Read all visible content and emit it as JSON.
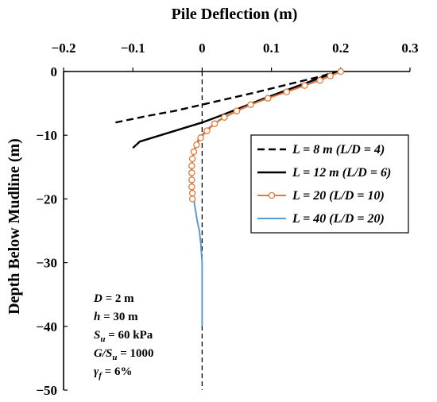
{
  "chart_data": {
    "type": "line",
    "title": "",
    "xlabel": "Pile Deflection (m)",
    "ylabel": "Depth Below Mudline (m)",
    "xlim": [
      -0.2,
      0.3
    ],
    "ylim": [
      -50,
      0
    ],
    "x_ticks": [
      "−0.2",
      "−0.1",
      "0",
      "0.1",
      "0.2",
      "0.3"
    ],
    "y_ticks": [
      "0",
      "−10",
      "−20",
      "−30",
      "−40",
      "−50"
    ],
    "x_axis_position": "top",
    "grid": false,
    "legend_position": "top-right",
    "reference_line": {
      "x": 0,
      "style": "dashed"
    },
    "series": [
      {
        "name": "L = 8 m (L/D = 4)",
        "style": "dashed",
        "color": "#000000",
        "marker": "none",
        "x": [
          -0.125,
          -0.08,
          -0.04,
          0.0,
          0.04,
          0.08,
          0.11,
          0.14,
          0.17,
          0.195
        ],
        "y": [
          -8,
          -7,
          -6.2,
          -5.2,
          -4.2,
          -3.2,
          -2.4,
          -1.6,
          -0.8,
          0
        ]
      },
      {
        "name": "L = 12 m (L/D = 6)",
        "style": "solid",
        "color": "#000000",
        "marker": "none",
        "x": [
          -0.1,
          -0.09,
          -0.06,
          -0.03,
          0.0,
          0.03,
          0.06,
          0.09,
          0.12,
          0.15,
          0.175,
          0.198
        ],
        "y": [
          -12,
          -11,
          -10,
          -9,
          -8,
          -6.8,
          -5.5,
          -4.2,
          -3,
          -1.8,
          -0.8,
          0
        ]
      },
      {
        "name": "L = 20 (L/D = 10)",
        "style": "solid",
        "color": "#e07a3a",
        "marker": "circle",
        "x": [
          0.2,
          0.185,
          0.17,
          0.148,
          0.122,
          0.095,
          0.07,
          0.05,
          0.032,
          0.018,
          0.007,
          -0.002,
          -0.008,
          -0.012,
          -0.014,
          -0.015,
          -0.015,
          -0.015,
          -0.015,
          -0.014,
          -0.014
        ],
        "y": [
          0,
          -0.7,
          -1.4,
          -2.2,
          -3.2,
          -4.2,
          -5.2,
          -6.2,
          -7.2,
          -8.2,
          -9.3,
          -10.4,
          -11.5,
          -12.6,
          -13.7,
          -14.8,
          -15.9,
          -17.0,
          -18.1,
          -19.1,
          -20
        ]
      },
      {
        "name": "L = 40 (L/D = 20)",
        "style": "solid",
        "color": "#5b9bd5",
        "marker": "none",
        "x": [
          0.2,
          0.17,
          0.14,
          0.11,
          0.08,
          0.05,
          0.025,
          0.008,
          -0.005,
          -0.012,
          -0.015,
          -0.015,
          -0.013,
          -0.01,
          -0.007,
          -0.004,
          -0.002,
          0.0,
          0.0,
          0.0
        ],
        "y": [
          0,
          -1.2,
          -2.4,
          -3.6,
          -4.8,
          -6.2,
          -7.6,
          -9,
          -10.5,
          -12.5,
          -14.5,
          -17,
          -19.5,
          -21.5,
          -23.5,
          -25,
          -27,
          -30,
          -35,
          -40
        ]
      }
    ],
    "annotation_lines": [
      {
        "var": "D",
        "sub": "",
        "text": " = 2 m"
      },
      {
        "var": "h",
        "sub": "",
        "text": " = 30 m"
      },
      {
        "var": "S",
        "sub": "u",
        "text": " = 60 kPa"
      },
      {
        "var": "G/S",
        "sub": "u",
        "text": " = 1000"
      },
      {
        "var": "γ",
        "sub": "f",
        "text": " = 6%"
      }
    ]
  }
}
